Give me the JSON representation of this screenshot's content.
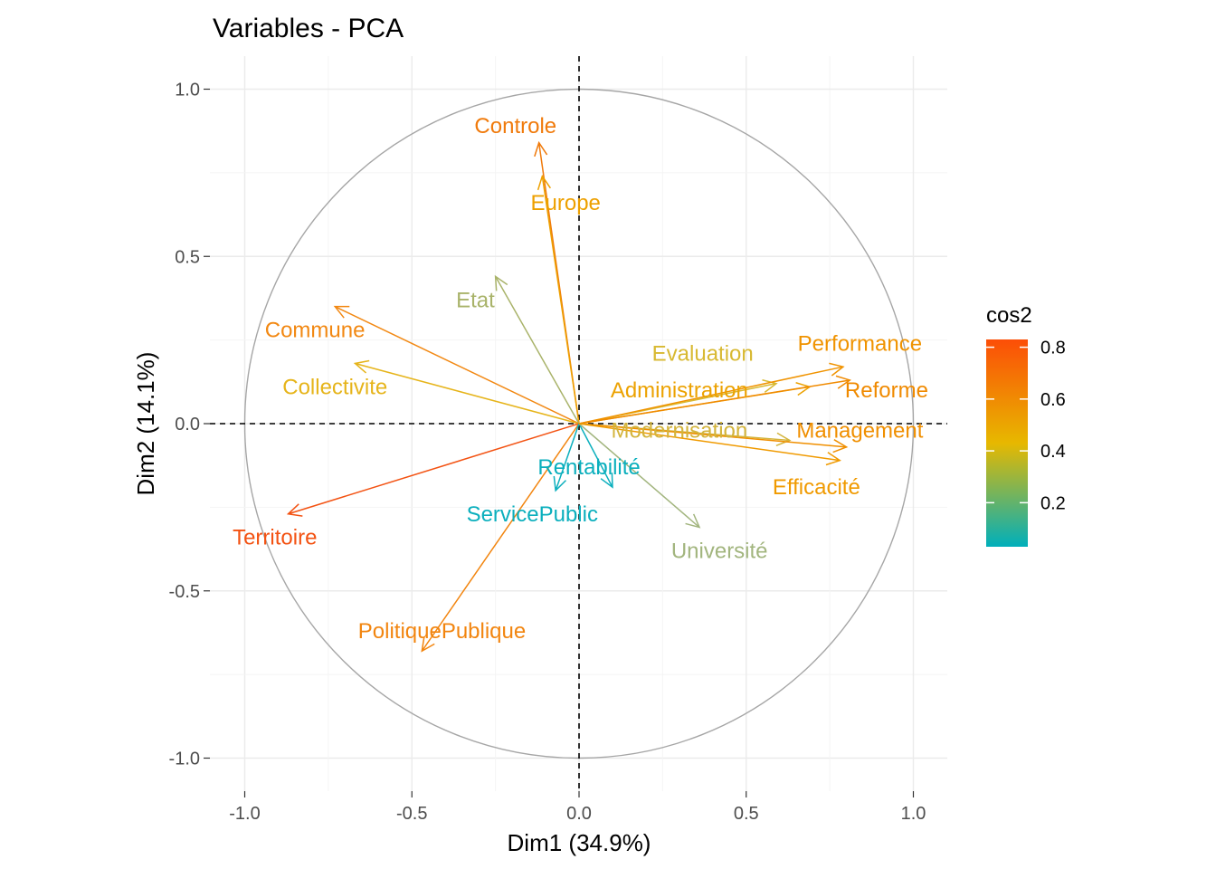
{
  "chart_data": {
    "type": "scatter",
    "subtype": "pca-variable-correlation-circle",
    "title": "Variables - PCA",
    "xlabel": "Dim1 (34.9%)",
    "ylabel": "Dim2 (14.1%)",
    "xlim": [
      -1.05,
      1.05
    ],
    "ylim": [
      -1.1,
      1.1
    ],
    "x_ticks": [
      -1.0,
      -0.5,
      0.0,
      0.5,
      1.0
    ],
    "x_tick_labels": [
      "-1.0",
      "-0.5",
      "0.0",
      "0.5",
      "1.0"
    ],
    "y_ticks": [
      -1.0,
      -0.5,
      0.0,
      0.5,
      1.0
    ],
    "y_tick_labels": [
      "-1.0",
      "-0.5",
      "0.0",
      "0.5",
      "1.0"
    ],
    "grid": true,
    "unit_circle": true,
    "reference_lines": [
      0,
      0
    ],
    "legend": {
      "title": "cos2",
      "position": "right",
      "ticks": [
        0.2,
        0.4,
        0.6,
        0.8
      ],
      "tick_labels": [
        "0.2",
        "0.4",
        "0.6",
        "0.8"
      ],
      "range": [
        0.03,
        0.83
      ],
      "gradient": [
        {
          "value": 0.03,
          "color": "#00AFBB"
        },
        {
          "value": 0.43,
          "color": "#E7B800"
        },
        {
          "value": 0.83,
          "color": "#FC4E07"
        }
      ]
    },
    "variables": [
      {
        "name": "Controle",
        "x": -0.12,
        "y": 0.84,
        "cos2": 0.72,
        "color": "#F07A0B",
        "label_x": -0.19,
        "label_y": 0.89
      },
      {
        "name": "Europe",
        "x": -0.11,
        "y": 0.74,
        "cos2": 0.56,
        "color": "#EDA000",
        "label_x": -0.04,
        "label_y": 0.66
      },
      {
        "name": "Etat",
        "x": -0.25,
        "y": 0.44,
        "cos2": 0.26,
        "color": "#A9B36A",
        "label_x": -0.31,
        "label_y": 0.37
      },
      {
        "name": "Commune",
        "x": -0.73,
        "y": 0.35,
        "cos2": 0.66,
        "color": "#F28812",
        "label_x": -0.79,
        "label_y": 0.28
      },
      {
        "name": "Collectivite",
        "x": -0.67,
        "y": 0.18,
        "cos2": 0.49,
        "color": "#E6B41A",
        "label_x": -0.73,
        "label_y": 0.11
      },
      {
        "name": "Territoire",
        "x": -0.87,
        "y": -0.27,
        "cos2": 0.83,
        "color": "#F35212",
        "label_x": -0.91,
        "label_y": -0.34
      },
      {
        "name": "PolitiquePublique",
        "x": -0.47,
        "y": -0.68,
        "cos2": 0.69,
        "color": "#F2850F",
        "label_x": -0.41,
        "label_y": -0.62
      },
      {
        "name": "ServicePublic",
        "x": -0.07,
        "y": -0.2,
        "cos2": 0.05,
        "color": "#0BAFBD",
        "label_x": -0.14,
        "label_y": -0.27
      },
      {
        "name": "Rentabilité",
        "x": 0.1,
        "y": -0.19,
        "cos2": 0.05,
        "color": "#0BAFBD",
        "label_x": 0.03,
        "label_y": -0.13
      },
      {
        "name": "Université",
        "x": 0.36,
        "y": -0.31,
        "cos2": 0.24,
        "color": "#A2B57E",
        "label_x": 0.42,
        "label_y": -0.38
      },
      {
        "name": "Evaluation",
        "x": 0.59,
        "y": 0.12,
        "cos2": 0.38,
        "color": "#D8B932",
        "label_x": 0.37,
        "label_y": 0.21
      },
      {
        "name": "Administration",
        "x": 0.69,
        "y": 0.11,
        "cos2": 0.58,
        "color": "#ECA202",
        "label_x": 0.3,
        "label_y": 0.1
      },
      {
        "name": "Performance",
        "x": 0.79,
        "y": 0.17,
        "cos2": 0.64,
        "color": "#F09300",
        "label_x": 0.84,
        "label_y": 0.24
      },
      {
        "name": "Reforme",
        "x": 0.81,
        "y": 0.13,
        "cos2": 0.67,
        "color": "#F08A00",
        "label_x": 0.92,
        "label_y": 0.1
      },
      {
        "name": "Modernisation",
        "x": 0.63,
        "y": -0.05,
        "cos2": 0.39,
        "color": "#D3B43C",
        "label_x": 0.3,
        "label_y": -0.02
      },
      {
        "name": "Management",
        "x": 0.8,
        "y": -0.07,
        "cos2": 0.65,
        "color": "#F08F00",
        "label_x": 0.84,
        "label_y": -0.02
      },
      {
        "name": "Efficacité",
        "x": 0.78,
        "y": -0.11,
        "cos2": 0.61,
        "color": "#F09A00",
        "label_x": 0.71,
        "label_y": -0.19
      }
    ]
  }
}
